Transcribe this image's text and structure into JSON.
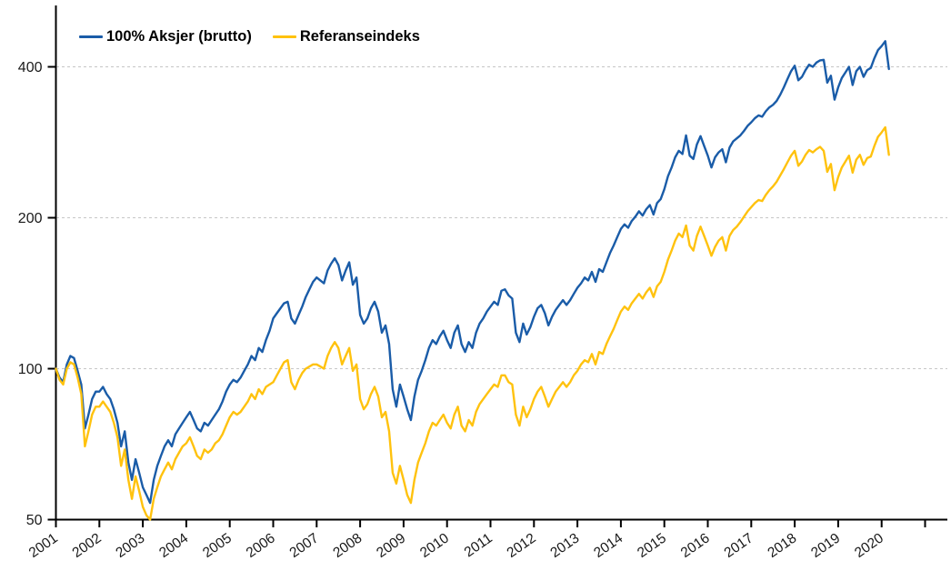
{
  "chart_data": {
    "type": "line",
    "title": "",
    "sampling": "monthly",
    "x_start_year": 2001,
    "x_step_months": 1,
    "x_axis": {
      "tick_years": [
        2001,
        2002,
        2003,
        2004,
        2005,
        2006,
        2007,
        2008,
        2009,
        2010,
        2011,
        2012,
        2013,
        2014,
        2015,
        2016,
        2017,
        2018,
        2019,
        2020
      ],
      "extra_unlabeled_tick_year": 2021,
      "label_rotation_deg": -35
    },
    "y_axis": {
      "scale": "log2",
      "ticks": [
        50,
        100,
        200,
        400
      ],
      "gridlines": [
        100,
        200,
        400
      ],
      "min": 50,
      "max": 460
    },
    "legend_position": "top-left-inside",
    "grid": "horizontal-dashed",
    "series": [
      {
        "name": "100% Aksjer (brutto)",
        "color": "#1A5CA8",
        "values": [
          100,
          96,
          94,
          102,
          106,
          105,
          99,
          93,
          76,
          81,
          87,
          90,
          90,
          92,
          89,
          87,
          83,
          78,
          70,
          75,
          65,
          60,
          66,
          62,
          58,
          56,
          54,
          60,
          64,
          67,
          70,
          72,
          70,
          74,
          76,
          78,
          80,
          82,
          79,
          76,
          75,
          78,
          77,
          79,
          81,
          83,
          86,
          90,
          93,
          95,
          94,
          96,
          99,
          102,
          106,
          104,
          110,
          108,
          114,
          119,
          126,
          129,
          132,
          135,
          136,
          126,
          123,
          128,
          133,
          139,
          144,
          149,
          152,
          150,
          148,
          157,
          162,
          166,
          161,
          150,
          157,
          163,
          147,
          152,
          128,
          123,
          126,
          132,
          136,
          130,
          118,
          122,
          112,
          91,
          84,
          93,
          88,
          83,
          79,
          88,
          95,
          99,
          104,
          110,
          114,
          112,
          116,
          119,
          114,
          110,
          118,
          122,
          112,
          108,
          113,
          110,
          118,
          123,
          126,
          130,
          133,
          136,
          134,
          143,
          144,
          140,
          138,
          118,
          113,
          123,
          117,
          121,
          127,
          132,
          134,
          129,
          122,
          127,
          131,
          134,
          137,
          134,
          137,
          141,
          145,
          148,
          152,
          150,
          156,
          149,
          158,
          156,
          163,
          170,
          176,
          183,
          190,
          194,
          191,
          197,
          201,
          206,
          202,
          208,
          212,
          203,
          214,
          218,
          228,
          242,
          252,
          264,
          272,
          268,
          292,
          266,
          262,
          280,
          291,
          278,
          266,
          252,
          264,
          270,
          274,
          258,
          276,
          284,
          288,
          292,
          298,
          305,
          310,
          316,
          320,
          318,
          326,
          332,
          336,
          342,
          352,
          364,
          378,
          392,
          402,
          376,
          382,
          394,
          404,
          400,
          408,
          412,
          413,
          372,
          384,
          344,
          364,
          380,
          390,
          400,
          368,
          392,
          400,
          382,
          394,
          398,
          416,
          432,
          440,
          450,
          396
        ]
      },
      {
        "name": "Referanseindeks",
        "color": "#FFC20E",
        "values": [
          100,
          95,
          93,
          100,
          103,
          102,
          96,
          89,
          70,
          75,
          81,
          84,
          84,
          86,
          84,
          82,
          78,
          73,
          64,
          69,
          60,
          55,
          61,
          57,
          53,
          51,
          50,
          55,
          58,
          61,
          63,
          65,
          63,
          66,
          68,
          70,
          71,
          73,
          70,
          67,
          66,
          69,
          68,
          69,
          71,
          72,
          74,
          77,
          80,
          82,
          81,
          82,
          84,
          86,
          89,
          87,
          91,
          89,
          92,
          93,
          94,
          97,
          100,
          103,
          104,
          94,
          91,
          95,
          98,
          100,
          101,
          102,
          102,
          101,
          100,
          106,
          110,
          113,
          110,
          102,
          106,
          110,
          99,
          102,
          87,
          83,
          85,
          89,
          92,
          88,
          80,
          82,
          75,
          62,
          59,
          64,
          60,
          56,
          54,
          60,
          65,
          68,
          71,
          75,
          78,
          77,
          79,
          81,
          78,
          76,
          81,
          84,
          77,
          75,
          79,
          77,
          82,
          85,
          87,
          89,
          91,
          93,
          92,
          97,
          97,
          94,
          93,
          81,
          77,
          84,
          80,
          83,
          87,
          90,
          92,
          88,
          84,
          87,
          90,
          92,
          94,
          92,
          94,
          97,
          99,
          102,
          104,
          103,
          107,
          102,
          108,
          107,
          112,
          116,
          120,
          125,
          130,
          133,
          131,
          135,
          138,
          141,
          138,
          142,
          145,
          139,
          146,
          149,
          156,
          165,
          172,
          180,
          186,
          183,
          193,
          176,
          172,
          184,
          192,
          184,
          176,
          168,
          175,
          180,
          183,
          172,
          184,
          189,
          192,
          196,
          201,
          206,
          210,
          214,
          217,
          216,
          222,
          227,
          231,
          236,
          243,
          250,
          258,
          266,
          272,
          254,
          259,
          267,
          273,
          270,
          274,
          277,
          272,
          247,
          256,
          227,
          241,
          252,
          259,
          266,
          246,
          261,
          267,
          255,
          263,
          265,
          278,
          290,
          296,
          303,
          267
        ]
      }
    ]
  },
  "colors": {
    "axis": "#000000",
    "gridline": "#c6c6c6",
    "tick_label": "#1a1a1a"
  }
}
